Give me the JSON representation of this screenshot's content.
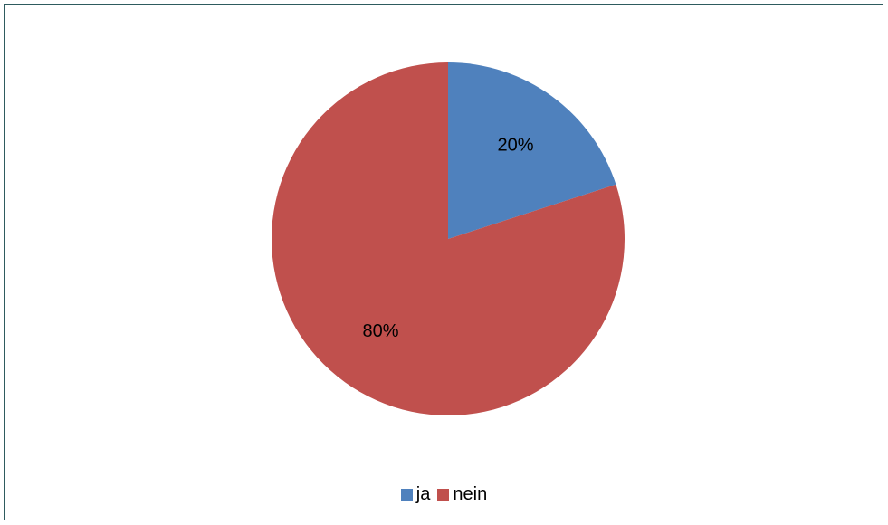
{
  "chart_data": {
    "type": "pie",
    "title": "",
    "categories": [
      "ja",
      "nein"
    ],
    "values": [
      20,
      80
    ],
    "labels": [
      "20%",
      "80%"
    ],
    "colors": [
      "#4f81bd",
      "#c0504d"
    ],
    "legend_position": "bottom",
    "start_angle_deg": 0,
    "direction": "clockwise"
  },
  "colors": {
    "frame_border": "#2e5b5e",
    "background": "#ffffff"
  }
}
